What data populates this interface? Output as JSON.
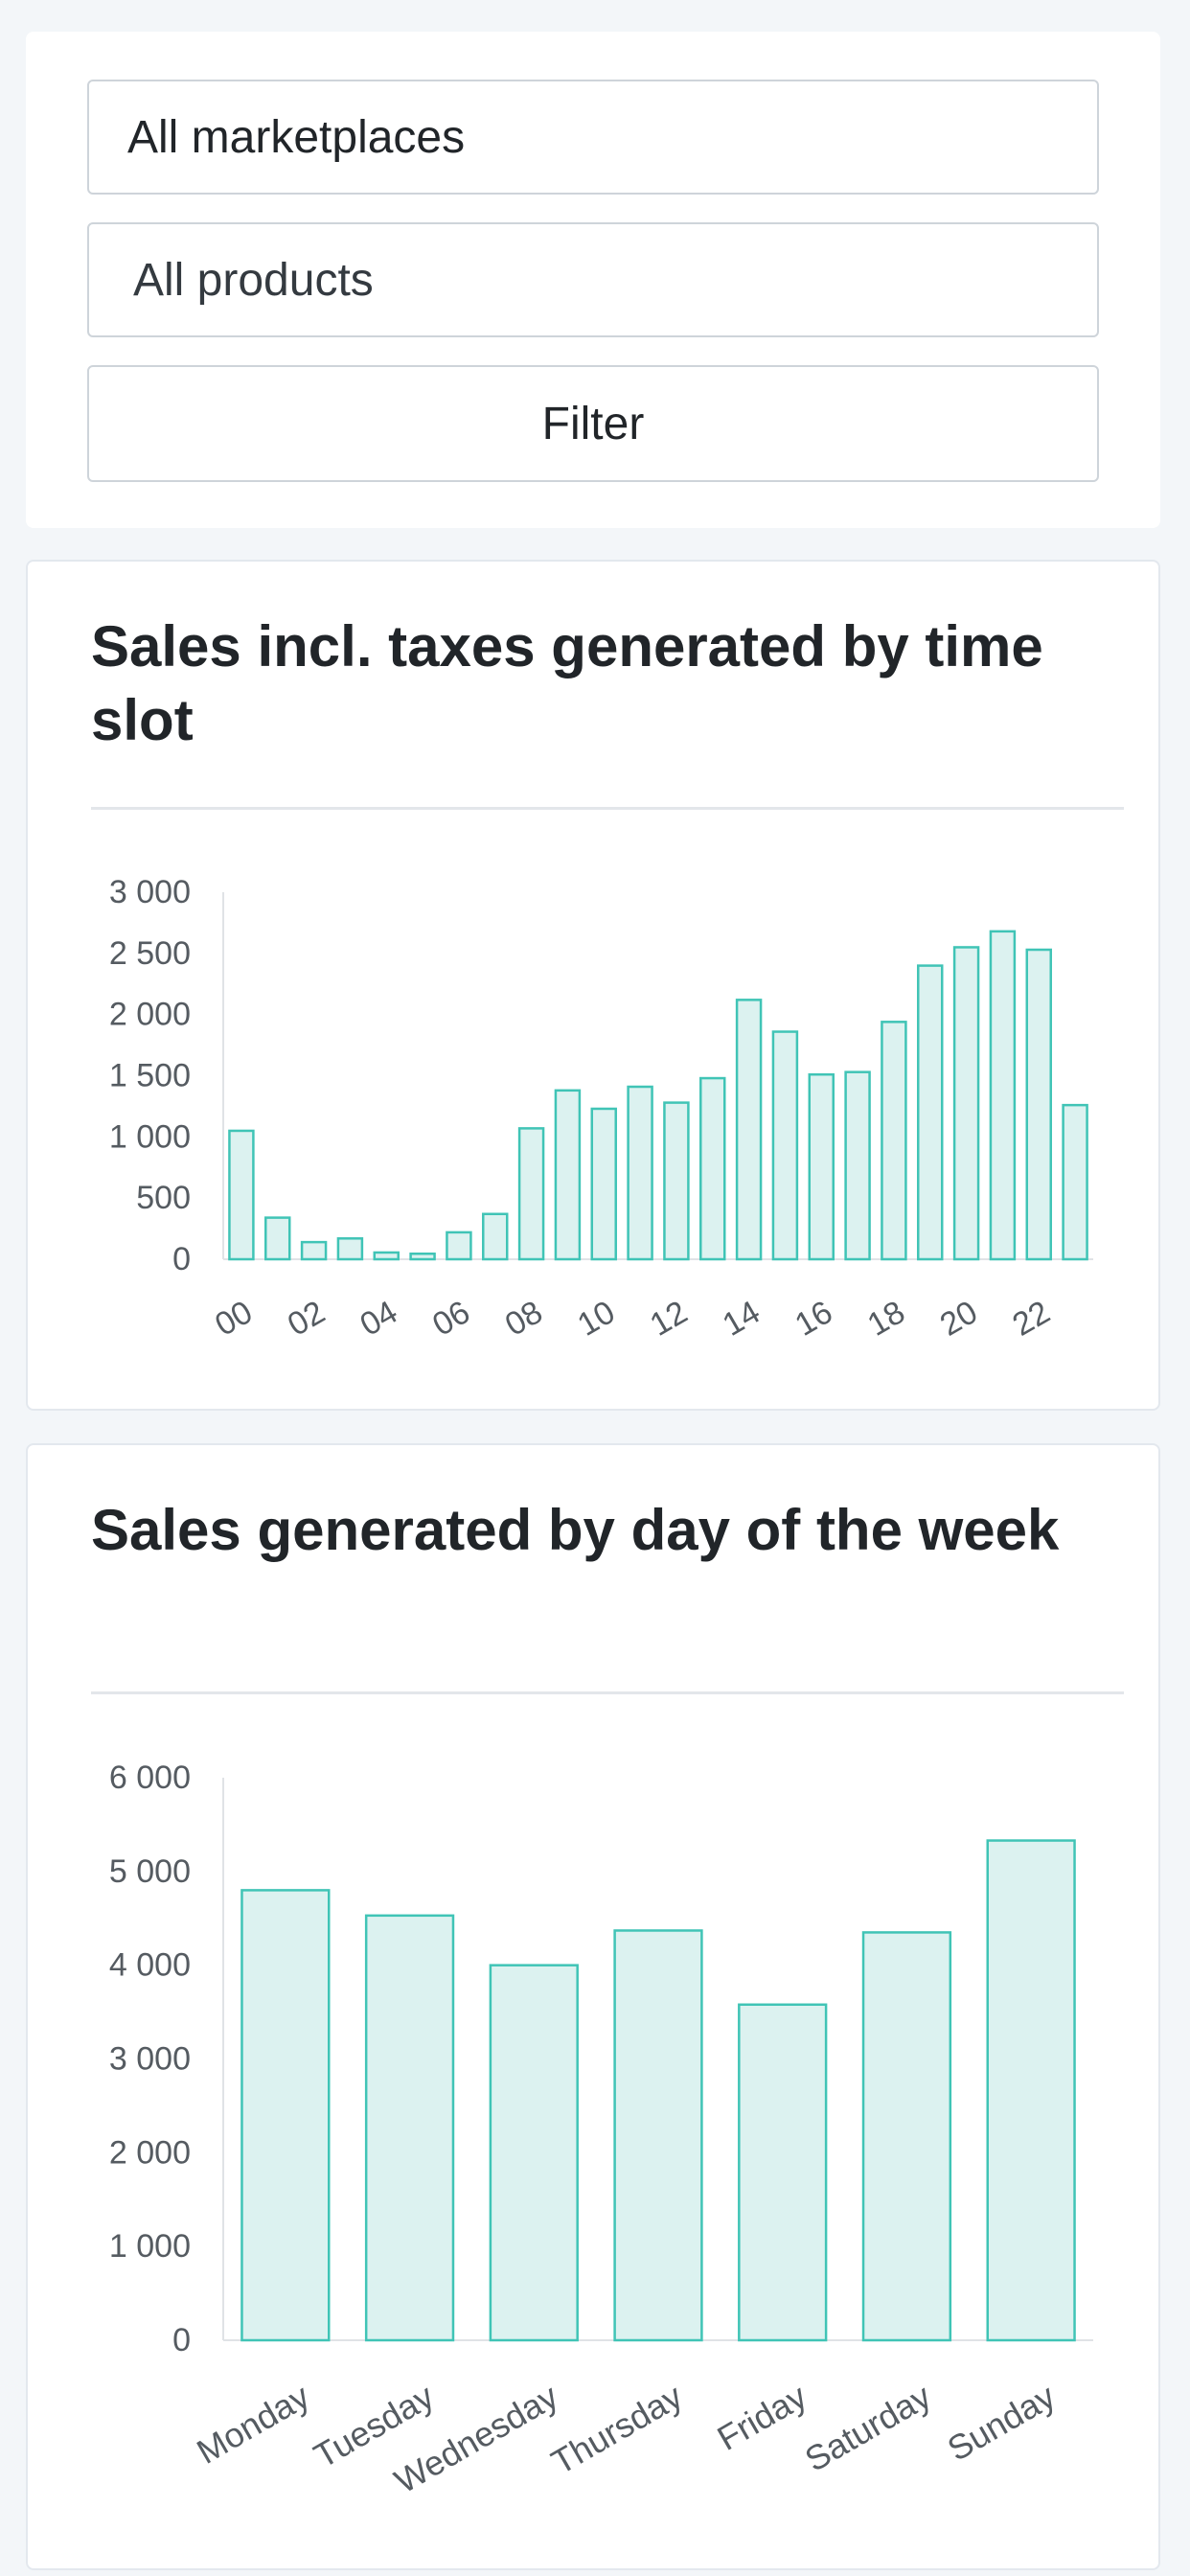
{
  "filters": {
    "marketplace_select": "All marketplaces",
    "product_select": "All products",
    "filter_button": "Filter"
  },
  "colors": {
    "bar_fill": "#dcf2f0",
    "bar_stroke": "#40c4b6",
    "axis": "#e0e3e6"
  },
  "chart_data": [
    {
      "type": "bar",
      "title": "Sales incl. taxes generated by time slot",
      "categories": [
        "00",
        "01",
        "02",
        "03",
        "04",
        "05",
        "06",
        "07",
        "08",
        "09",
        "10",
        "11",
        "12",
        "13",
        "14",
        "15",
        "16",
        "17",
        "18",
        "19",
        "20",
        "21",
        "22",
        "23"
      ],
      "x_tick_labels": [
        "00",
        "02",
        "04",
        "06",
        "08",
        "10",
        "12",
        "14",
        "16",
        "18",
        "20",
        "22"
      ],
      "values": [
        1050,
        340,
        140,
        170,
        55,
        45,
        220,
        370,
        1070,
        1380,
        1230,
        1410,
        1280,
        1480,
        2120,
        1860,
        1510,
        1530,
        1940,
        2400,
        2550,
        2680,
        2530,
        1260
      ],
      "ylim": [
        0,
        3000
      ],
      "y_ticks": [
        0,
        500,
        1000,
        1500,
        2000,
        2500,
        3000
      ],
      "y_tick_labels": [
        "0",
        "500",
        "1 000",
        "1 500",
        "2 000",
        "2 500",
        "3 000"
      ],
      "grid": false
    },
    {
      "type": "bar",
      "title": "Sales generated by day of the week",
      "categories": [
        "Monday",
        "Tuesday",
        "Wednesday",
        "Thursday",
        "Friday",
        "Saturday",
        "Sunday"
      ],
      "values": [
        4800,
        4530,
        4000,
        4370,
        3580,
        4350,
        5330
      ],
      "ylim": [
        0,
        6000
      ],
      "y_ticks": [
        0,
        1000,
        2000,
        3000,
        4000,
        5000,
        6000
      ],
      "y_tick_labels": [
        "0",
        "1 000",
        "2 000",
        "3 000",
        "4 000",
        "5 000",
        "6 000"
      ],
      "grid": false
    }
  ]
}
